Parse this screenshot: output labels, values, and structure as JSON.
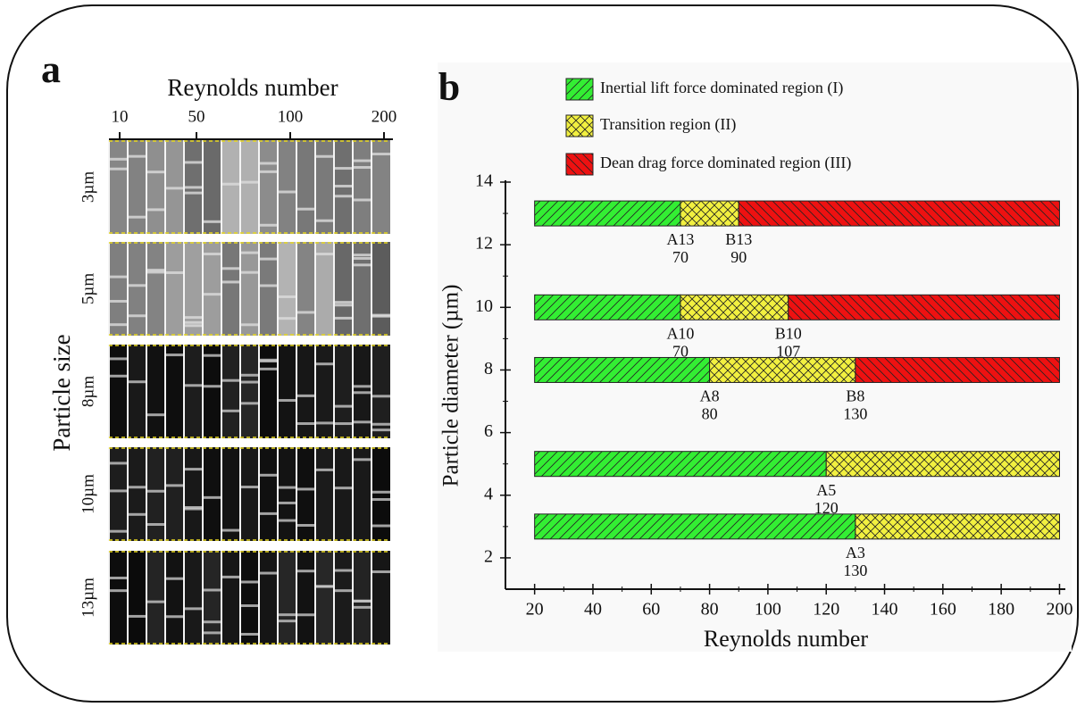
{
  "chart_data": [
    {
      "type": "image",
      "panel_label": "a",
      "xlabel": "Reynolds number",
      "column_labels": [
        "10",
        "50",
        "100",
        "200"
      ],
      "ylabel": "Particle size",
      "rows": [
        "3µm",
        "5µm",
        "8µm",
        "10µm",
        "13µm"
      ]
    },
    {
      "type": "bar",
      "orientation": "horizontal",
      "panel_label": "b",
      "xlabel": "Reynolds number",
      "ylabel": "Particle diameter (µm)",
      "y": [
        3,
        5,
        8,
        10,
        13
      ],
      "series": [
        {
          "name": "Inertial lift force dominated region (I)",
          "color": "#33ee33",
          "hatch": "/",
          "values": [
            [
              20,
              130
            ],
            [
              20,
              120
            ],
            [
              20,
              80
            ],
            [
              20,
              70
            ],
            [
              20,
              70
            ]
          ]
        },
        {
          "name": "Transition region (II)",
          "color": "#f2f040",
          "hatch": "x",
          "values": [
            [
              130,
              200
            ],
            [
              120,
              200
            ],
            [
              80,
              130
            ],
            [
              70,
              107
            ],
            [
              70,
              90
            ]
          ]
        },
        {
          "name": "Dean drag force dominated region (III)",
          "color": "#ee1111",
          "hatch": "\\",
          "values": [
            null,
            null,
            [
              130,
              200
            ],
            [
              107,
              200
            ],
            [
              90,
              200
            ]
          ]
        }
      ],
      "annotations": [
        {
          "label": "A3",
          "value": 130,
          "y": 3
        },
        {
          "label": "A5",
          "value": 120,
          "y": 5
        },
        {
          "label": "A8",
          "value": 80,
          "y": 8
        },
        {
          "label": "B8",
          "value": 130,
          "y": 8
        },
        {
          "label": "A10",
          "value": 70,
          "y": 10
        },
        {
          "label": "B10",
          "value": 107,
          "y": 10
        },
        {
          "label": "A13",
          "value": 70,
          "y": 13
        },
        {
          "label": "B13",
          "value": 90,
          "y": 13
        }
      ],
      "xlim": [
        10,
        202
      ],
      "xticks": [
        20,
        40,
        60,
        80,
        100,
        120,
        140,
        160,
        180,
        200
      ],
      "ylim": [
        1,
        14
      ],
      "yticks": [
        2,
        4,
        6,
        8,
        10,
        12,
        14
      ],
      "legend": "top"
    }
  ]
}
